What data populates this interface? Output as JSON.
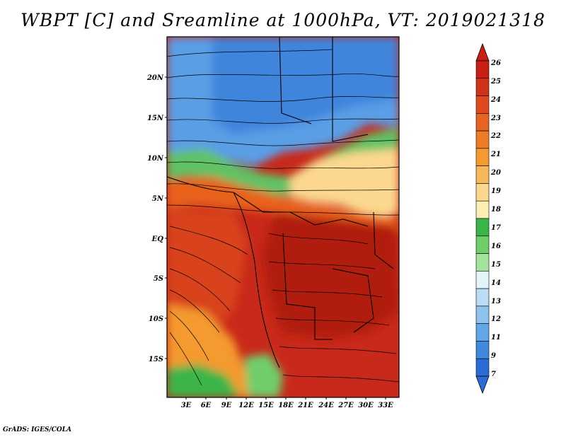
{
  "title": "WBPT [C] and Sreamline at 1000hPa, VT: 2019021318",
  "credit": "GrADS: IGES/COLA",
  "map": {
    "variable": "Wet-bulb potential temperature",
    "level": "1000hPa",
    "valid_time": "2019021318",
    "lat_labels": [
      "20N",
      "15N",
      "10N",
      "5N",
      "EQ",
      "5S",
      "10S",
      "15S"
    ],
    "lon_labels": [
      "3E",
      "6E",
      "9E",
      "12E",
      "15E",
      "18E",
      "21E",
      "24E",
      "27E",
      "30E",
      "33E"
    ]
  },
  "colorbar": {
    "labels": [
      "26",
      "25",
      "24",
      "23",
      "22",
      "21",
      "20",
      "19",
      "18",
      "17",
      "16",
      "15",
      "14",
      "13",
      "12",
      "11",
      "9",
      "7"
    ],
    "colors": [
      "#c81e14",
      "#d2321a",
      "#de4a1e",
      "#e86220",
      "#ef7b24",
      "#f49a2e",
      "#f8b85a",
      "#fbd88e",
      "#fcefb4",
      "#3ab54a",
      "#6fce6a",
      "#a3e39a",
      "#e4f5fa",
      "#b8ddf5",
      "#8fc3ee",
      "#62a6e8",
      "#3f89df",
      "#2a6cd6"
    ]
  }
}
